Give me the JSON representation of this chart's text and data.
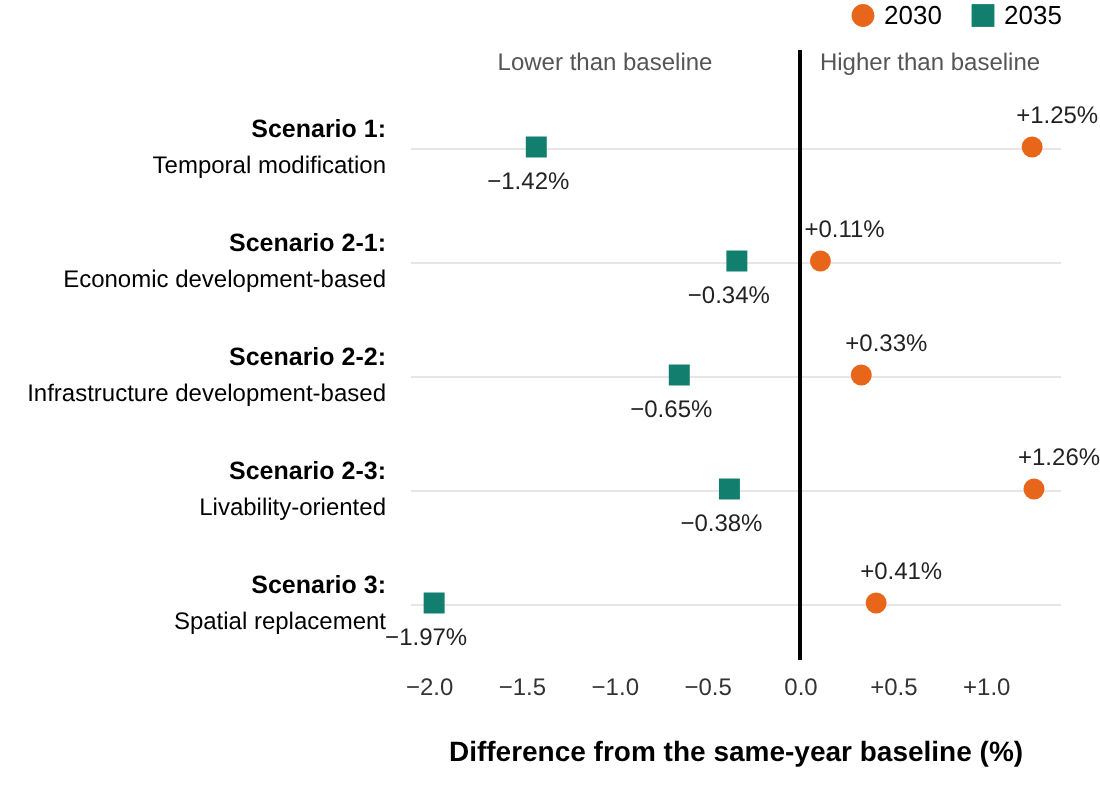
{
  "chart_data": {
    "type": "scatter",
    "xlabel": "Difference from the same-year baseline (%)",
    "categories": [
      "Scenario 1:\nTemporal modification",
      "Scenario 2-1:\nEconomic development-based",
      "Scenario 2-2:\nInfrastructure development-based",
      "Scenario 2-3:\nLivability-oriented",
      "Scenario 3:\nSpatial replacement"
    ],
    "series": [
      {
        "name": "2030",
        "color": "#e8661a",
        "marker": "circle",
        "values": [
          1.25,
          0.11,
          0.33,
          1.26,
          0.41
        ],
        "value_labels": [
          "+1.25%",
          "+0.11%",
          "+0.33%",
          "+1.26%",
          "+0.41%"
        ]
      },
      {
        "name": "2035",
        "color": "#127f6e",
        "marker": "square",
        "values": [
          -1.42,
          -0.34,
          -0.65,
          -0.38,
          -1.97
        ],
        "value_labels": [
          "−1.42%",
          "−0.34%",
          "−0.65%",
          "−0.38%",
          "−1.97%"
        ]
      }
    ],
    "orientation": "horizontal",
    "xlim": [
      -2.1,
      1.4
    ],
    "xticks": [
      {
        "value": -2,
        "label": "−2.0"
      },
      {
        "value": -1.5,
        "label": "−1.5"
      },
      {
        "value": -1,
        "label": "−1.0"
      },
      {
        "value": -0.5,
        "label": "−0.5"
      },
      {
        "value": 0,
        "label": "0.0"
      },
      {
        "value": 0.5,
        "label": "+0.5"
      },
      {
        "value": 1,
        "label": "+1.0"
      }
    ],
    "ref_lines": [
      {
        "axis": "x",
        "value": 0,
        "color": "#000000"
      }
    ],
    "annotations": [
      "Lower than baseline",
      "Higher than baseline"
    ],
    "grid": "y",
    "legend": "top right"
  }
}
